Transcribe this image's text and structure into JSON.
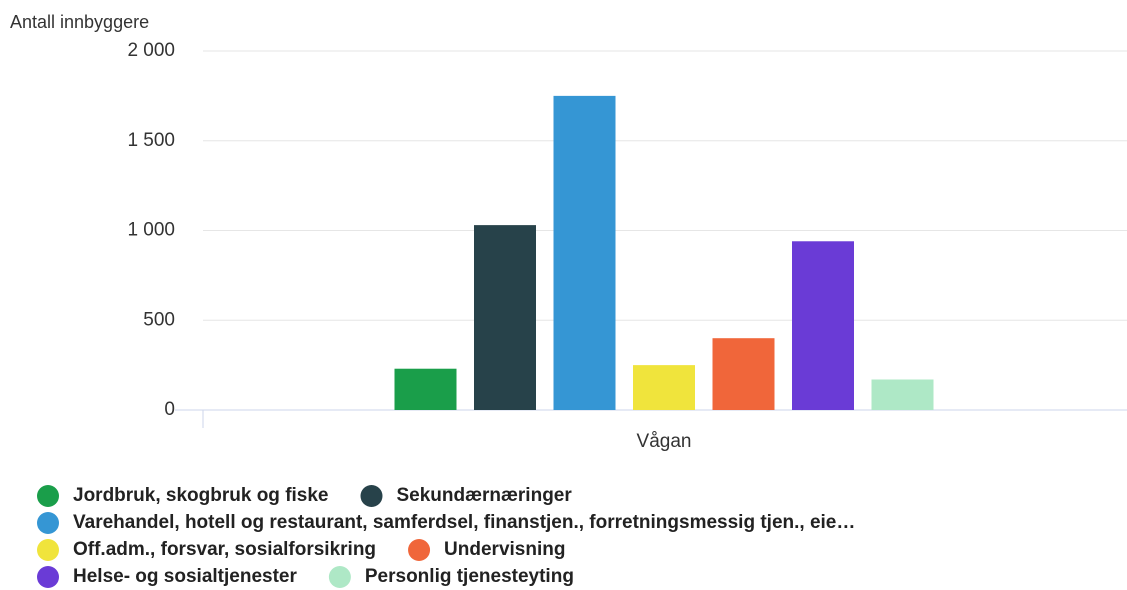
{
  "chart_data": {
    "type": "bar",
    "y_axis_label": "Antall innbyggere",
    "categories": [
      "Vågan"
    ],
    "series": [
      {
        "name": "Jordbruk, skogbruk og fiske",
        "color": "#1a9e4a",
        "values": [
          230
        ]
      },
      {
        "name": "Sekundærnæringer",
        "color": "#27424a",
        "values": [
          1030
        ]
      },
      {
        "name": "Varehandel, hotell og restaurant, samferdsel, finanstjen., forretningsmessig tjen., eie…",
        "color": "#3596d4",
        "values": [
          1750
        ]
      },
      {
        "name": "Off.adm., forsvar, sosialforsikring",
        "color": "#f0e43c",
        "values": [
          250
        ]
      },
      {
        "name": "Undervisning",
        "color": "#f0663a",
        "values": [
          400
        ]
      },
      {
        "name": "Helse- og sosialtjenester",
        "color": "#6a3bd6",
        "values": [
          940
        ]
      },
      {
        "name": "Personlig tjenesteyting",
        "color": "#aee8c6",
        "values": [
          170
        ]
      }
    ],
    "ylim": [
      0,
      2000
    ],
    "yticks": [
      0,
      500,
      {
        "value": 1000,
        "label": "1 000"
      },
      {
        "value": 1500,
        "label": "1 500"
      },
      {
        "value": 2000,
        "label": "2 000"
      }
    ],
    "grid": true,
    "legend": "bottom"
  }
}
